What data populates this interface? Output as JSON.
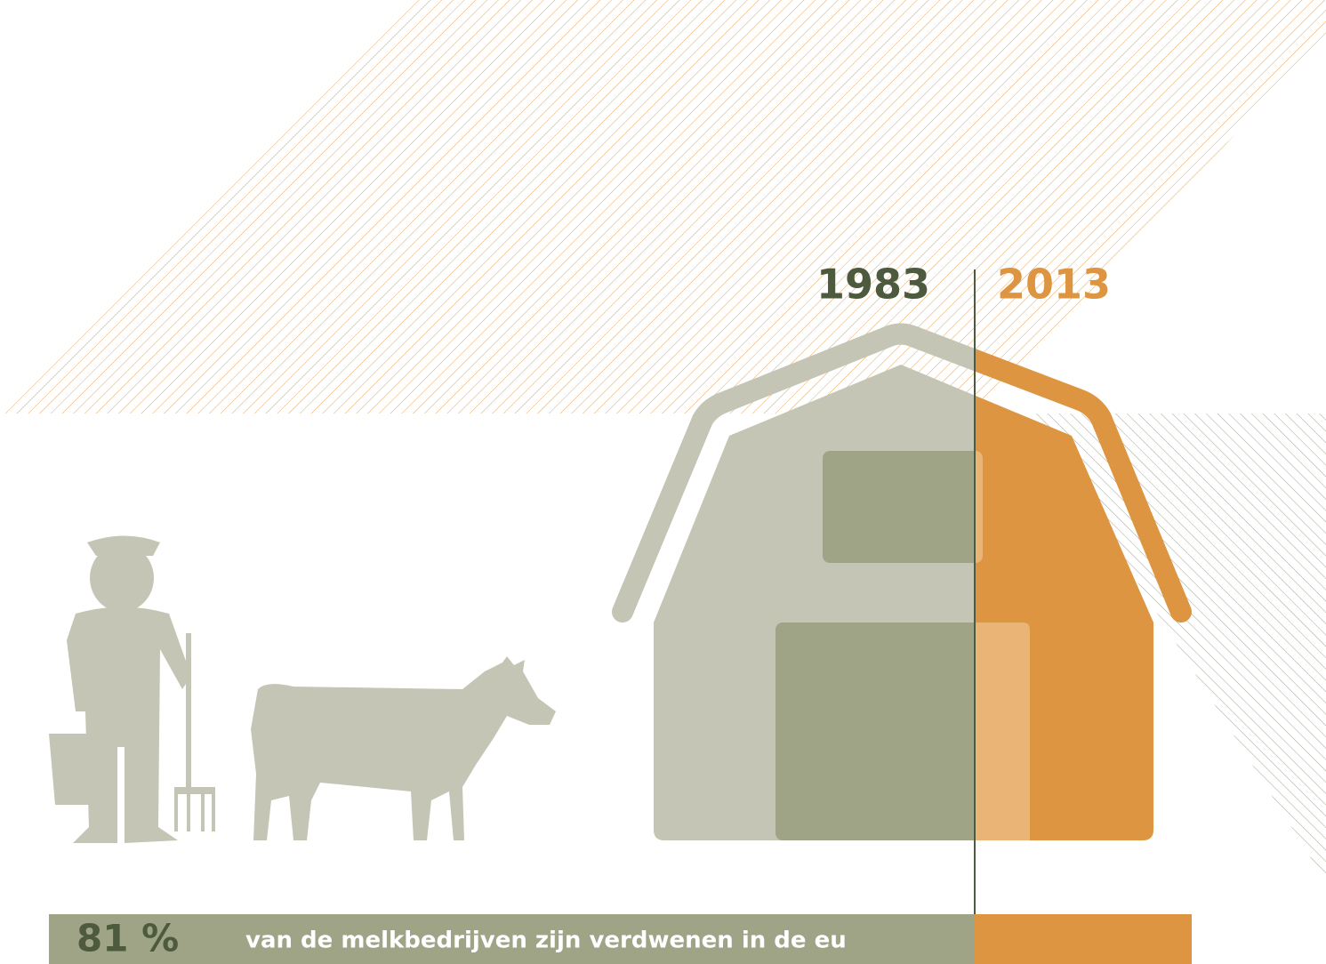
{
  "years": {
    "before": "1983",
    "after": "2013"
  },
  "stat": {
    "figure": "81 %",
    "text": "van de melkbedrijven zijn verdwenen in de eu"
  }
}
